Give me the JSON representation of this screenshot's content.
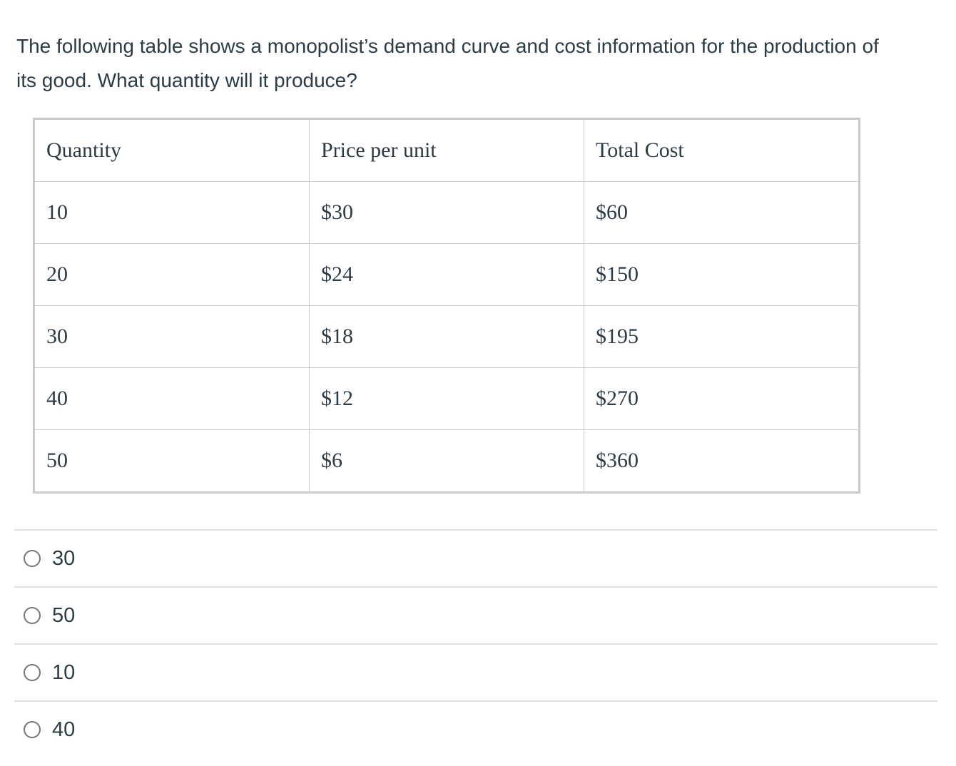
{
  "question": {
    "text": "The following table shows a monopolist’s demand curve and cost information for the production of its good. What quantity will it produce?"
  },
  "table": {
    "headers": [
      "Quantity",
      "Price per unit",
      "Total Cost"
    ],
    "rows": [
      {
        "quantity": "10",
        "price": "$30",
        "total_cost": "$60"
      },
      {
        "quantity": "20",
        "price": "$24",
        "total_cost": "$150"
      },
      {
        "quantity": "30",
        "price": "$18",
        "total_cost": "$195"
      },
      {
        "quantity": "40",
        "price": "$12",
        "total_cost": "$270"
      },
      {
        "quantity": "50",
        "price": "$6",
        "total_cost": "$360"
      }
    ]
  },
  "options": [
    {
      "label": "30",
      "selected": false
    },
    {
      "label": "50",
      "selected": false
    },
    {
      "label": "10",
      "selected": false
    },
    {
      "label": "40",
      "selected": false
    }
  ],
  "colors": {
    "text": "#2D3B45",
    "table_outer_border": "#c9c9c9",
    "table_cell_border": "#cccccc",
    "option_divider": "#e0e0e0",
    "radio_border": "#767676",
    "background": "#ffffff"
  }
}
